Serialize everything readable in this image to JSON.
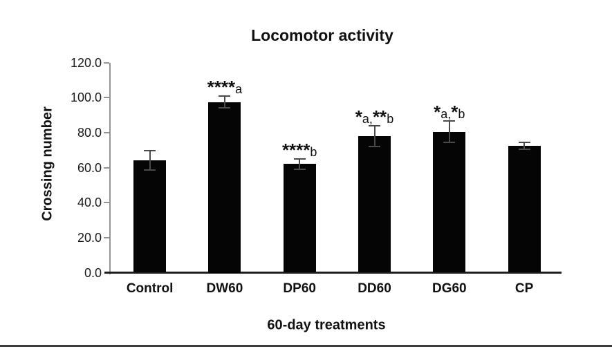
{
  "figure": {
    "title": "Locomotor activity",
    "x_axis_title": "60-day treatments",
    "y_axis_title": "Crossing number"
  },
  "chart_data": {
    "type": "bar",
    "title": "Locomotor activity",
    "xlabel": "60-day treatments",
    "ylabel": "Crossing number",
    "categories": [
      "Control",
      "DW60",
      "DP60",
      "DD60",
      "DG60",
      "CP"
    ],
    "values": [
      64,
      97.5,
      62,
      78,
      80.5,
      72.5
    ],
    "errors": [
      5.5,
      3.5,
      3,
      6,
      6,
      2
    ],
    "annotations": [
      [],
      [
        {
          "text": "****",
          "style": "stars"
        },
        {
          "text": "a",
          "style": "letter"
        }
      ],
      [
        {
          "text": "****",
          "style": "stars"
        },
        {
          "text": "b",
          "style": "letter"
        }
      ],
      [
        {
          "text": "*",
          "style": "stars"
        },
        {
          "text": "a,",
          "style": "letter"
        },
        {
          "text": "**",
          "style": "stars"
        },
        {
          "text": "b",
          "style": "letter"
        }
      ],
      [
        {
          "text": "*",
          "style": "stars"
        },
        {
          "text": "a,",
          "style": "letter"
        },
        {
          "text": "*",
          "style": "stars"
        },
        {
          "text": "b",
          "style": "letter"
        }
      ],
      []
    ],
    "ylim": [
      0,
      120
    ],
    "ytick_step": 20,
    "ytick_labels": [
      "0.0",
      "20.0",
      "40.0",
      "60.0",
      "80.0",
      "100.0",
      "120.0"
    ],
    "grid": false,
    "legend": "none",
    "bar_color": "#050505",
    "error_bar_color": "#4a4a4a",
    "axis_line_color": "#949494",
    "baseline_color": "#1f1f1f"
  }
}
